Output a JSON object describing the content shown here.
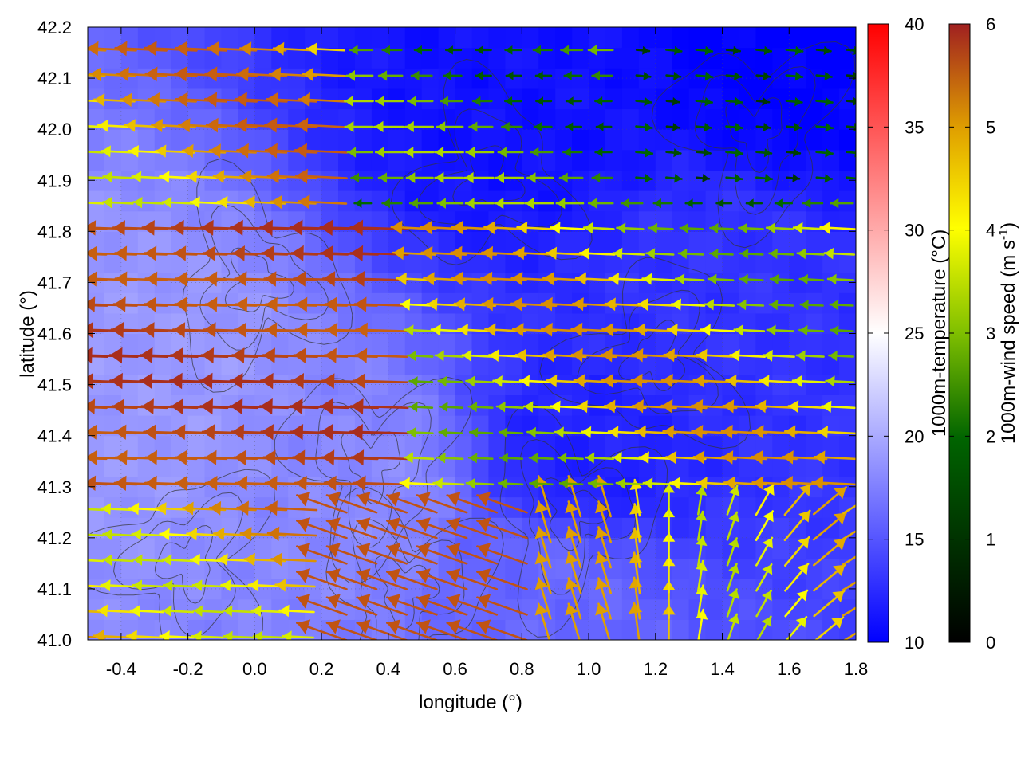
{
  "chart_data": {
    "type": "heatmap",
    "title": "",
    "xlabel": "longitude (°)",
    "ylabel": "latitude (°)",
    "xlim": [
      -0.5,
      1.8
    ],
    "ylim": [
      41.0,
      42.2
    ],
    "xticks": [
      "-0.4",
      "-0.2",
      "0.0",
      "0.2",
      "0.4",
      "0.6",
      "0.8",
      "1.0",
      "1.2",
      "1.4",
      "1.6",
      "1.8"
    ],
    "yticks": [
      "41.0",
      "41.1",
      "41.2",
      "41.3",
      "41.4",
      "41.5",
      "41.6",
      "41.7",
      "41.8",
      "41.9",
      "42.0",
      "42.1",
      "42.2"
    ],
    "grid": true,
    "overlays": [
      "terrain contours",
      "wind vectors"
    ],
    "colorbars": [
      {
        "label": "1000m-temperature (°C)",
        "range": [
          10,
          40
        ],
        "ticks": [
          "10",
          "15",
          "20",
          "25",
          "30",
          "35",
          "40"
        ],
        "colors": [
          "#0000ff",
          "#ffffff",
          "#ff0000"
        ]
      },
      {
        "label_main": "1000m-wind speed (m s",
        "label_sup": "-1",
        "label_close": ")",
        "range": [
          0,
          6
        ],
        "ticks": [
          "0",
          "1",
          "2",
          "3",
          "4",
          "5",
          "6"
        ],
        "colors": [
          "#000000",
          "#006400",
          "#7fbf00",
          "#ffff00",
          "#e0a000",
          "#c86010",
          "#a02020"
        ]
      }
    ],
    "temperature_field_approx": {
      "description_points": [
        {
          "lon": -0.3,
          "lat": 41.5,
          "temp_c": 19
        },
        {
          "lon": 0.3,
          "lat": 41.3,
          "temp_c": 18
        },
        {
          "lon": 0.9,
          "lat": 41.1,
          "temp_c": 16
        },
        {
          "lon": 1.0,
          "lat": 41.35,
          "temp_c": 12
        },
        {
          "lon": 1.4,
          "lat": 41.7,
          "temp_c": 13
        },
        {
          "lon": 0.8,
          "lat": 42.05,
          "temp_c": 11
        },
        {
          "lon": 1.6,
          "lat": 42.15,
          "temp_c": 10
        }
      ]
    },
    "wind_field_approx": {
      "regimes": [
        {
          "region": "west lon<0.4 lat 41.3-41.8",
          "direction": "westward",
          "speed_ms": 5.8
        },
        {
          "region": "southeast lon>1.1 lat<41.3",
          "direction": "northward/northeast",
          "speed_ms": 4.0
        },
        {
          "region": "northeast lon>1.1 lat>41.9",
          "direction": "eastward",
          "speed_ms": 0.8
        },
        {
          "region": "central",
          "direction": "westward",
          "speed_ms": 3.5
        }
      ]
    }
  }
}
